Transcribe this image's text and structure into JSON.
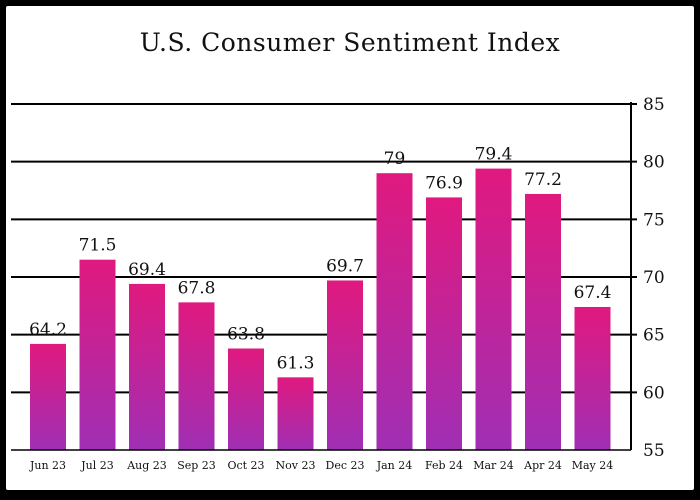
{
  "chart_data": {
    "type": "bar",
    "title": "U.S. Consumer Sentiment Index",
    "xlabel": "",
    "ylabel": "",
    "categories": [
      "Jun 23",
      "Jul 23",
      "Aug 23",
      "Sep 23",
      "Oct 23",
      "Nov 23",
      "Dec 23",
      "Jan 24",
      "Feb 24",
      "Mar 24",
      "Apr 24",
      "May 24"
    ],
    "values": [
      64.2,
      71.5,
      69.4,
      67.8,
      63.8,
      61.3,
      69.7,
      79,
      76.9,
      79.4,
      77.2,
      67.4
    ],
    "ylim": [
      55,
      85
    ],
    "yticks": [
      55,
      60,
      65,
      70,
      75,
      80,
      85
    ],
    "y_axis_side": "right",
    "grid": true,
    "legend": "none",
    "colors": {
      "bar_top": "#e0197f",
      "bar_bottom": "#a02fb4",
      "frame": "#000000",
      "background": "#ffffff"
    }
  }
}
